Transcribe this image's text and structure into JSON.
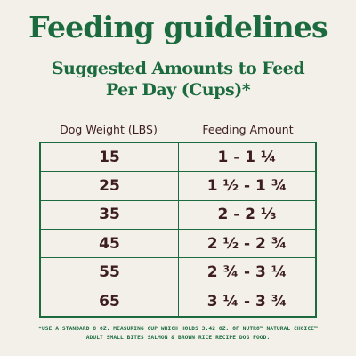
{
  "title": "Feeding guidelines",
  "subtitle": {
    "line1": "Suggested Amounts to Feed",
    "line2": "Per Day (Cups)*"
  },
  "table": {
    "headers": {
      "weight": "Dog Weight (LBS)",
      "amount": "Feeding Amount"
    },
    "rows": [
      {
        "weight": "15",
        "amount": "1 - 1 ¼"
      },
      {
        "weight": "25",
        "amount": "1 ½ - 1 ¾"
      },
      {
        "weight": "35",
        "amount": "2 - 2 ⅓"
      },
      {
        "weight": "45",
        "amount": "2 ½ - 2 ¾"
      },
      {
        "weight": "55",
        "amount": "2 ¾ - 3 ¼"
      },
      {
        "weight": "65",
        "amount": "3 ¼ - 3 ¾"
      }
    ]
  },
  "footnote": {
    "line1": "*USE A STANDARD 8 OZ. MEASURING CUP WHICH HOLDS 3.42 OZ. OF NUTRO™ NATURAL CHOICE™",
    "line2": "ADULT SMALL BITES SALMON & BROWN RICE RECIPE DOG FOOD."
  },
  "colors": {
    "background": "#f3f0ea",
    "brand_green": "#1b6b3e",
    "text_maroon": "#3d1d22"
  }
}
